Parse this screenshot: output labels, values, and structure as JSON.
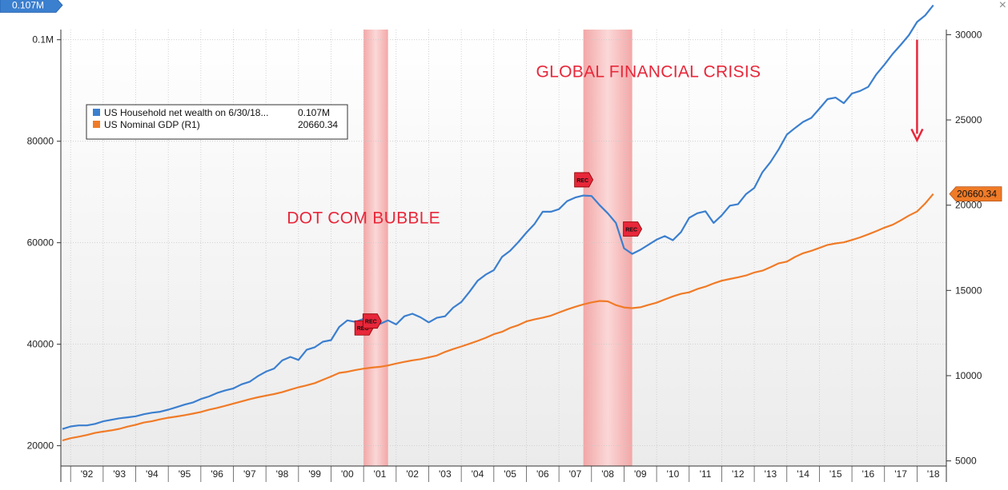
{
  "window": {
    "close_glyph": "×"
  },
  "chart_data": {
    "type": "line",
    "grid": true,
    "legend_position": "top-left",
    "x_tick_labels": [
      "'92",
      "'93",
      "'94",
      "'95",
      "'96",
      "'97",
      "'98",
      "'99",
      "'00",
      "'01",
      "'02",
      "'03",
      "'04",
      "'05",
      "'06",
      "'07",
      "'08",
      "'09",
      "'10",
      "'11",
      "'12",
      "'13",
      "'14",
      "'15",
      "'16",
      "'17",
      "'18"
    ],
    "x_range": [
      1991.7,
      2018.9
    ],
    "left_axis": {
      "range": [
        16000,
        102000
      ],
      "ticks": [
        20000,
        40000,
        60000,
        80000,
        100000
      ],
      "tick_labels": [
        "20000",
        "40000",
        "60000",
        "80000",
        "0.1M"
      ],
      "current_value_label": "0.107M",
      "current_value": 106800,
      "color": "#3b7fcf"
    },
    "right_axis": {
      "range": [
        4700,
        30300
      ],
      "ticks": [
        5000,
        10000,
        15000,
        20000,
        25000,
        30000
      ],
      "tick_labels": [
        "5000",
        "10000",
        "15000",
        "20000",
        "25000",
        "30000"
      ],
      "current_value_label": "20660.34",
      "current_value": 20660.34,
      "color": "#f07b27"
    },
    "legend": [
      {
        "name": "US Household net wealth on 6/30/18...",
        "value": "0.107M",
        "color": "#3b7fcf"
      },
      {
        "name": "US Nominal GDP (R1)",
        "value": "20660.34",
        "color": "#f07b27"
      }
    ],
    "series": [
      {
        "name": "US Household net wealth on 6/30/18...",
        "axis": "left",
        "color": "#3b7fcf",
        "points": [
          [
            1991.75,
            23300
          ],
          [
            1992.0,
            23800
          ],
          [
            1992.25,
            24000
          ],
          [
            1992.5,
            24000
          ],
          [
            1992.75,
            24300
          ],
          [
            1993.0,
            24800
          ],
          [
            1993.25,
            25100
          ],
          [
            1993.5,
            25400
          ],
          [
            1993.75,
            25600
          ],
          [
            1994.0,
            25800
          ],
          [
            1994.25,
            26200
          ],
          [
            1994.5,
            26500
          ],
          [
            1994.75,
            26700
          ],
          [
            1995.0,
            27100
          ],
          [
            1995.25,
            27600
          ],
          [
            1995.5,
            28100
          ],
          [
            1995.75,
            28500
          ],
          [
            1996.0,
            29200
          ],
          [
            1996.25,
            29700
          ],
          [
            1996.5,
            30400
          ],
          [
            1996.75,
            30900
          ],
          [
            1997.0,
            31300
          ],
          [
            1997.25,
            32100
          ],
          [
            1997.5,
            32600
          ],
          [
            1997.75,
            33700
          ],
          [
            1998.0,
            34600
          ],
          [
            1998.25,
            35200
          ],
          [
            1998.5,
            36800
          ],
          [
            1998.75,
            37500
          ],
          [
            1999.0,
            36900
          ],
          [
            1999.25,
            38900
          ],
          [
            1999.5,
            39400
          ],
          [
            1999.75,
            40500
          ],
          [
            2000.0,
            40800
          ],
          [
            2000.25,
            43400
          ],
          [
            2000.5,
            44700
          ],
          [
            2000.75,
            44400
          ],
          [
            2001.0,
            45000
          ],
          [
            2001.25,
            44500
          ],
          [
            2001.5,
            44000
          ],
          [
            2001.75,
            44700
          ],
          [
            2002.0,
            43900
          ],
          [
            2002.25,
            45500
          ],
          [
            2002.5,
            46000
          ],
          [
            2002.75,
            45300
          ],
          [
            2003.0,
            44300
          ],
          [
            2003.25,
            45200
          ],
          [
            2003.5,
            45500
          ],
          [
            2003.75,
            47200
          ],
          [
            2004.0,
            48300
          ],
          [
            2004.25,
            50300
          ],
          [
            2004.5,
            52500
          ],
          [
            2004.75,
            53700
          ],
          [
            2005.0,
            54600
          ],
          [
            2005.25,
            57200
          ],
          [
            2005.5,
            58400
          ],
          [
            2005.75,
            60100
          ],
          [
            2006.0,
            62000
          ],
          [
            2006.25,
            63700
          ],
          [
            2006.5,
            66100
          ],
          [
            2006.75,
            66100
          ],
          [
            2007.0,
            66600
          ],
          [
            2007.25,
            68200
          ],
          [
            2007.5,
            68900
          ],
          [
            2007.75,
            69300
          ],
          [
            2008.0,
            69200
          ],
          [
            2008.25,
            67400
          ],
          [
            2008.5,
            65800
          ],
          [
            2008.75,
            63900
          ],
          [
            2009.0,
            58900
          ],
          [
            2009.25,
            57800
          ],
          [
            2009.5,
            58600
          ],
          [
            2009.75,
            59600
          ],
          [
            2010.0,
            60600
          ],
          [
            2010.25,
            61300
          ],
          [
            2010.5,
            60500
          ],
          [
            2010.75,
            62100
          ],
          [
            2011.0,
            64900
          ],
          [
            2011.25,
            65800
          ],
          [
            2011.5,
            66200
          ],
          [
            2011.75,
            63900
          ],
          [
            2012.0,
            65400
          ],
          [
            2012.25,
            67300
          ],
          [
            2012.5,
            67600
          ],
          [
            2012.75,
            69600
          ],
          [
            2013.0,
            70800
          ],
          [
            2013.25,
            73900
          ],
          [
            2013.5,
            75900
          ],
          [
            2013.75,
            78400
          ],
          [
            2014.0,
            81300
          ],
          [
            2014.25,
            82600
          ],
          [
            2014.5,
            83800
          ],
          [
            2014.75,
            84600
          ],
          [
            2015.0,
            86400
          ],
          [
            2015.25,
            88300
          ],
          [
            2015.5,
            88600
          ],
          [
            2015.75,
            87500
          ],
          [
            2016.0,
            89400
          ],
          [
            2016.25,
            89900
          ],
          [
            2016.5,
            90700
          ],
          [
            2016.75,
            93200
          ],
          [
            2017.0,
            95100
          ],
          [
            2017.25,
            97200
          ],
          [
            2017.5,
            99000
          ],
          [
            2017.75,
            100900
          ],
          [
            2018.0,
            103500
          ],
          [
            2018.25,
            104800
          ],
          [
            2018.5,
            106800
          ]
        ]
      },
      {
        "name": "US Nominal GDP (R1)",
        "axis": "right",
        "color": "#f07b27",
        "points": [
          [
            1991.75,
            6200
          ],
          [
            1992.0,
            6330
          ],
          [
            1992.25,
            6420
          ],
          [
            1992.5,
            6520
          ],
          [
            1992.75,
            6640
          ],
          [
            1993.0,
            6720
          ],
          [
            1993.25,
            6790
          ],
          [
            1993.5,
            6880
          ],
          [
            1993.75,
            7010
          ],
          [
            1994.0,
            7120
          ],
          [
            1994.25,
            7250
          ],
          [
            1994.5,
            7330
          ],
          [
            1994.75,
            7440
          ],
          [
            1995.0,
            7530
          ],
          [
            1995.25,
            7600
          ],
          [
            1995.5,
            7680
          ],
          [
            1995.75,
            7770
          ],
          [
            1996.0,
            7870
          ],
          [
            1996.25,
            8000
          ],
          [
            1996.5,
            8110
          ],
          [
            1996.75,
            8230
          ],
          [
            1997.0,
            8360
          ],
          [
            1997.25,
            8490
          ],
          [
            1997.5,
            8620
          ],
          [
            1997.75,
            8730
          ],
          [
            1998.0,
            8830
          ],
          [
            1998.25,
            8920
          ],
          [
            1998.5,
            9030
          ],
          [
            1998.75,
            9180
          ],
          [
            1999.0,
            9320
          ],
          [
            1999.25,
            9430
          ],
          [
            1999.5,
            9560
          ],
          [
            1999.75,
            9760
          ],
          [
            2000.0,
            9950
          ],
          [
            2000.25,
            10160
          ],
          [
            2000.5,
            10230
          ],
          [
            2000.75,
            10330
          ],
          [
            2001.0,
            10410
          ],
          [
            2001.25,
            10470
          ],
          [
            2001.5,
            10520
          ],
          [
            2001.75,
            10600
          ],
          [
            2002.0,
            10710
          ],
          [
            2002.25,
            10810
          ],
          [
            2002.5,
            10900
          ],
          [
            2002.75,
            10970
          ],
          [
            2003.0,
            11070
          ],
          [
            2003.25,
            11180
          ],
          [
            2003.5,
            11390
          ],
          [
            2003.75,
            11560
          ],
          [
            2004.0,
            11710
          ],
          [
            2004.25,
            11870
          ],
          [
            2004.5,
            12040
          ],
          [
            2004.75,
            12220
          ],
          [
            2005.0,
            12430
          ],
          [
            2005.25,
            12570
          ],
          [
            2005.5,
            12800
          ],
          [
            2005.75,
            12960
          ],
          [
            2006.0,
            13180
          ],
          [
            2006.25,
            13300
          ],
          [
            2006.5,
            13400
          ],
          [
            2006.75,
            13520
          ],
          [
            2007.0,
            13700
          ],
          [
            2007.25,
            13880
          ],
          [
            2007.5,
            14040
          ],
          [
            2007.75,
            14180
          ],
          [
            2008.0,
            14300
          ],
          [
            2008.25,
            14380
          ],
          [
            2008.5,
            14360
          ],
          [
            2008.75,
            14140
          ],
          [
            2009.0,
            14000
          ],
          [
            2009.25,
            13960
          ],
          [
            2009.5,
            14010
          ],
          [
            2009.75,
            14150
          ],
          [
            2010.0,
            14280
          ],
          [
            2010.25,
            14470
          ],
          [
            2010.5,
            14650
          ],
          [
            2010.75,
            14800
          ],
          [
            2011.0,
            14890
          ],
          [
            2011.25,
            15080
          ],
          [
            2011.5,
            15220
          ],
          [
            2011.75,
            15410
          ],
          [
            2012.0,
            15570
          ],
          [
            2012.25,
            15670
          ],
          [
            2012.5,
            15770
          ],
          [
            2012.75,
            15880
          ],
          [
            2013.0,
            16050
          ],
          [
            2013.25,
            16160
          ],
          [
            2013.5,
            16360
          ],
          [
            2013.75,
            16590
          ],
          [
            2014.0,
            16690
          ],
          [
            2014.25,
            16960
          ],
          [
            2014.5,
            17180
          ],
          [
            2014.75,
            17320
          ],
          [
            2015.0,
            17490
          ],
          [
            2015.25,
            17670
          ],
          [
            2015.5,
            17760
          ],
          [
            2015.75,
            17820
          ],
          [
            2016.0,
            17960
          ],
          [
            2016.25,
            18110
          ],
          [
            2016.5,
            18290
          ],
          [
            2016.75,
            18480
          ],
          [
            2017.0,
            18680
          ],
          [
            2017.25,
            18850
          ],
          [
            2017.5,
            19110
          ],
          [
            2017.75,
            19390
          ],
          [
            2018.0,
            19630
          ],
          [
            2018.25,
            20100
          ],
          [
            2018.5,
            20660.34
          ]
        ]
      }
    ],
    "recession_bands": [
      {
        "start": 2001.0,
        "end": 2001.75
      },
      {
        "start": 2007.75,
        "end": 2009.25
      }
    ],
    "rec_flags_label": "REC",
    "rec_flags": [
      {
        "date": 2001.0,
        "value": 12800,
        "axis": "right"
      },
      {
        "date": 2001.25,
        "value": 13200,
        "axis": "right"
      },
      {
        "date": 2007.75,
        "value": 72400,
        "axis": "left"
      },
      {
        "date": 2009.25,
        "value": 62700,
        "axis": "left"
      }
    ],
    "annotations": [
      {
        "text": "DOT COM BUBBLE",
        "date": 2001.0,
        "value": 63800,
        "axis": "left",
        "color": "#e8273a"
      },
      {
        "text": "GLOBAL FINANCIAL CRISIS",
        "date": 2009.75,
        "value": 92600,
        "axis": "left",
        "color": "#e8273a"
      }
    ],
    "arrow": {
      "date": 2018.0,
      "value_start": 100000,
      "value_end": 80200,
      "axis": "left",
      "color": "#e8273a"
    }
  }
}
